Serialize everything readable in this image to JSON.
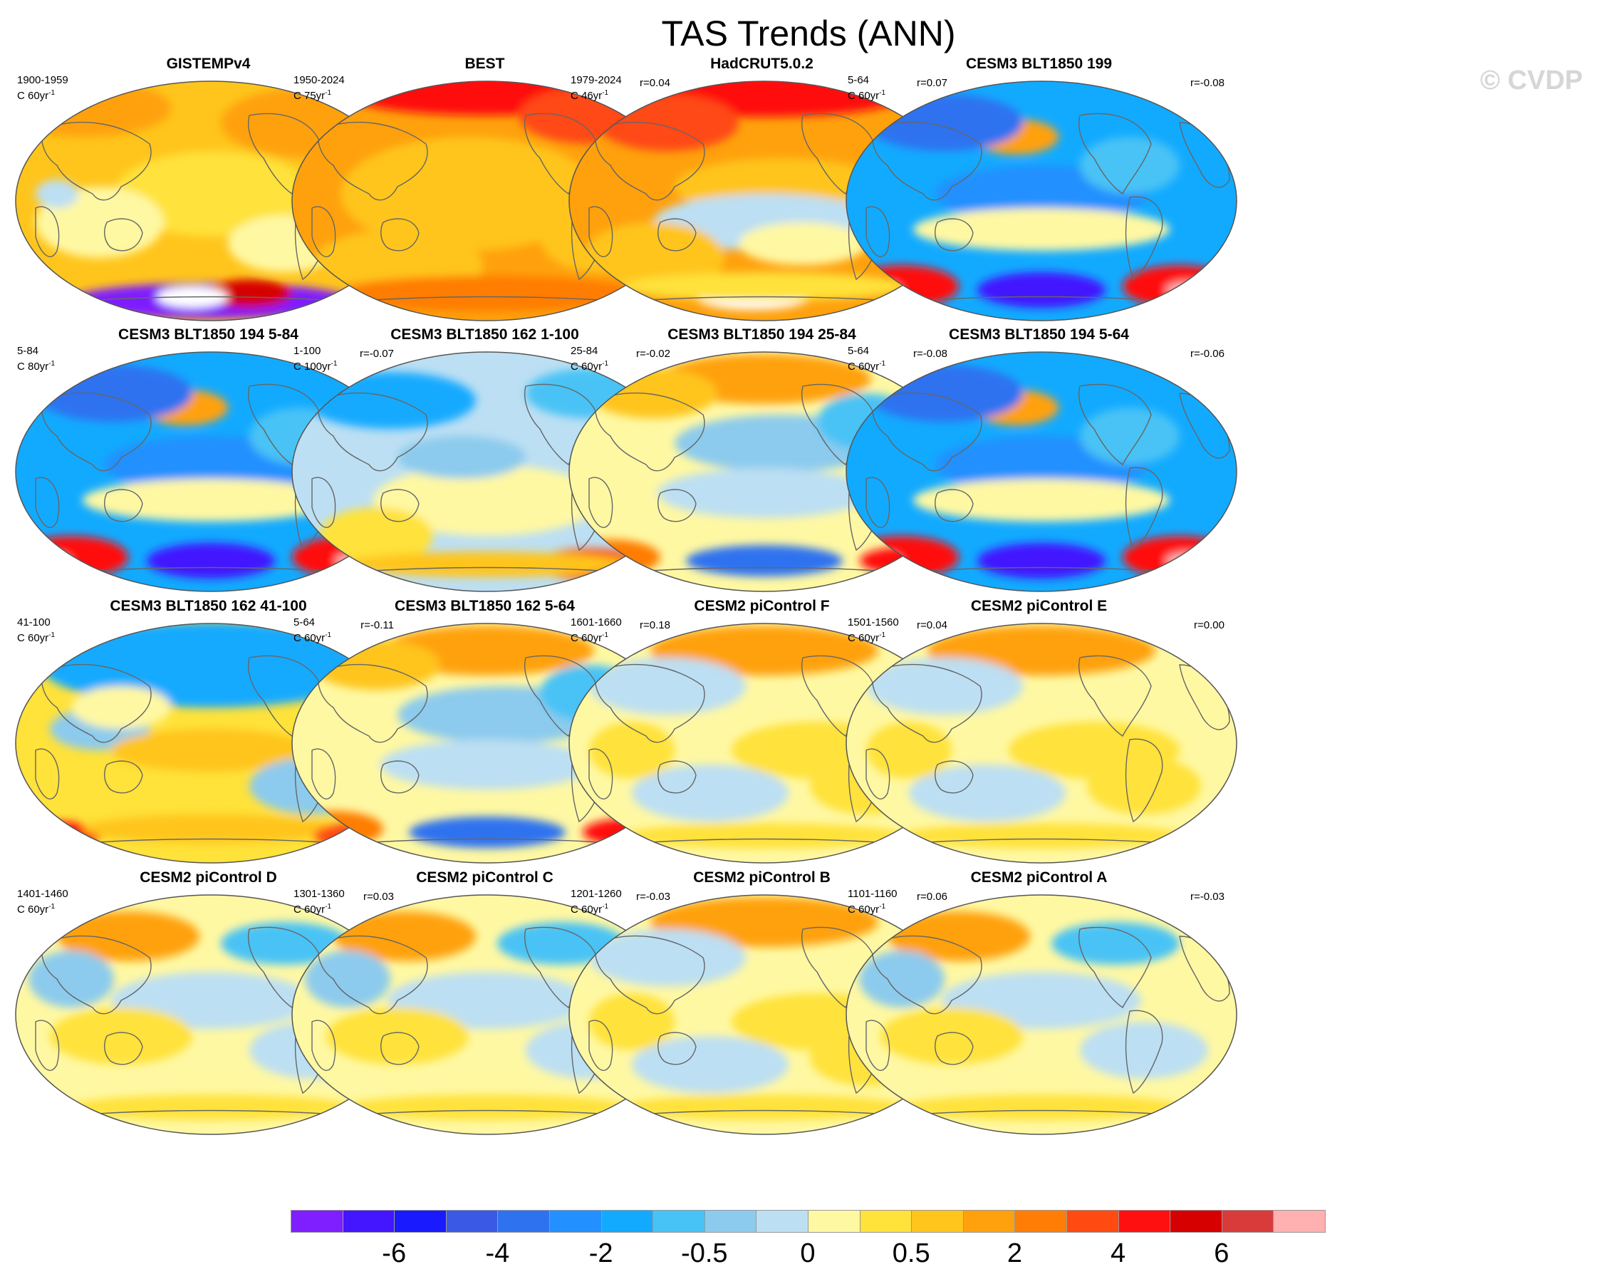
{
  "title": "TAS Trends (ANN)",
  "watermark": "© CVDP",
  "colors": {
    "ocean_outline": "#555555",
    "coast": "#666666"
  },
  "panels": [
    {
      "title": "GISTEMPv4",
      "years": "1900-1959",
      "units_prefix": "C 60yr",
      "units_exp": "-1",
      "corr": "",
      "pattern": "warm_gist"
    },
    {
      "title": "BEST",
      "years": "1950-2024",
      "units_prefix": "C 75yr",
      "units_exp": "-1",
      "corr": "r=0.04",
      "pattern": "warm_best"
    },
    {
      "title": "HadCRUT5.0.2",
      "years": "1979-2024",
      "units_prefix": "C 46yr",
      "units_exp": "-1",
      "corr": "r=0.07",
      "pattern": "warm_had"
    },
    {
      "title": "CESM3 BLT1850 199",
      "years": "5-64",
      "units_prefix": "C 60yr",
      "units_exp": "-1",
      "corr": "r=-0.08",
      "pattern": "cool_strong"
    },
    {
      "title": "CESM3 BLT1850 194 5-84",
      "years": "5-84",
      "units_prefix": "C 80yr",
      "units_exp": "-1",
      "corr": "r=-0.07",
      "pattern": "cool_strong"
    },
    {
      "title": "CESM3 BLT1850 162 1-100",
      "years": "1-100",
      "units_prefix": "C 100yr",
      "units_exp": "-1",
      "corr": "r=-0.02",
      "pattern": "cool_light"
    },
    {
      "title": "CESM3 BLT1850 194 25-84",
      "years": "25-84",
      "units_prefix": "C 60yr",
      "units_exp": "-1",
      "corr": "r=-0.08",
      "pattern": "mixed_warmnorth"
    },
    {
      "title": "CESM3 BLT1850 194 5-64",
      "years": "5-64",
      "units_prefix": "C 60yr",
      "units_exp": "-1",
      "corr": "r=-0.06",
      "pattern": "cool_strong"
    },
    {
      "title": "CESM3 BLT1850 162 41-100",
      "years": "41-100",
      "units_prefix": "C 60yr",
      "units_exp": "-1",
      "corr": "r=-0.11",
      "pattern": "cool_north"
    },
    {
      "title": "CESM3 BLT1850 162 5-64",
      "years": "5-64",
      "units_prefix": "C 60yr",
      "units_exp": "-1",
      "corr": "r=0.18",
      "pattern": "mixed_warmnorth"
    },
    {
      "title": "CESM2 piControl F",
      "years": "1601-1660",
      "units_prefix": "C 60yr",
      "units_exp": "-1",
      "corr": "r=0.04",
      "pattern": "neutral_warm"
    },
    {
      "title": "CESM2 piControl E",
      "years": "1501-1560",
      "units_prefix": "C 60yr",
      "units_exp": "-1",
      "corr": "r=0.00",
      "pattern": "neutral_warm"
    },
    {
      "title": "CESM2 piControl D",
      "years": "1401-1460",
      "units_prefix": "C 60yr",
      "units_exp": "-1",
      "corr": "r=0.03",
      "pattern": "neutral"
    },
    {
      "title": "CESM2 piControl C",
      "years": "1301-1360",
      "units_prefix": "C 60yr",
      "units_exp": "-1",
      "corr": "r=-0.03",
      "pattern": "neutral"
    },
    {
      "title": "CESM2 piControl B",
      "years": "1201-1260",
      "units_prefix": "C 60yr",
      "units_exp": "-1",
      "corr": "r=0.06",
      "pattern": "neutral_warm"
    },
    {
      "title": "CESM2 piControl A",
      "years": "1101-1160",
      "units_prefix": "C 60yr",
      "units_exp": "-1",
      "corr": "r=-0.03",
      "pattern": "neutral"
    }
  ],
  "colorbar": {
    "colors": [
      "#7f1fff",
      "#4316ff",
      "#1a1aff",
      "#3a5ae6",
      "#2f72f0",
      "#2390ff",
      "#12aaff",
      "#48c3f5",
      "#8ccbed",
      "#bcdff3",
      "#fff8a3",
      "#ffe23a",
      "#ffc51c",
      "#ffa10d",
      "#ff7d05",
      "#ff4a12",
      "#ff1010",
      "#d60000",
      "#d93b3b",
      "#ffb0b0"
    ],
    "labels": [
      "-6",
      "-4",
      "-2",
      "-0.5",
      "0",
      "0.5",
      "2",
      "4",
      "6"
    ]
  }
}
